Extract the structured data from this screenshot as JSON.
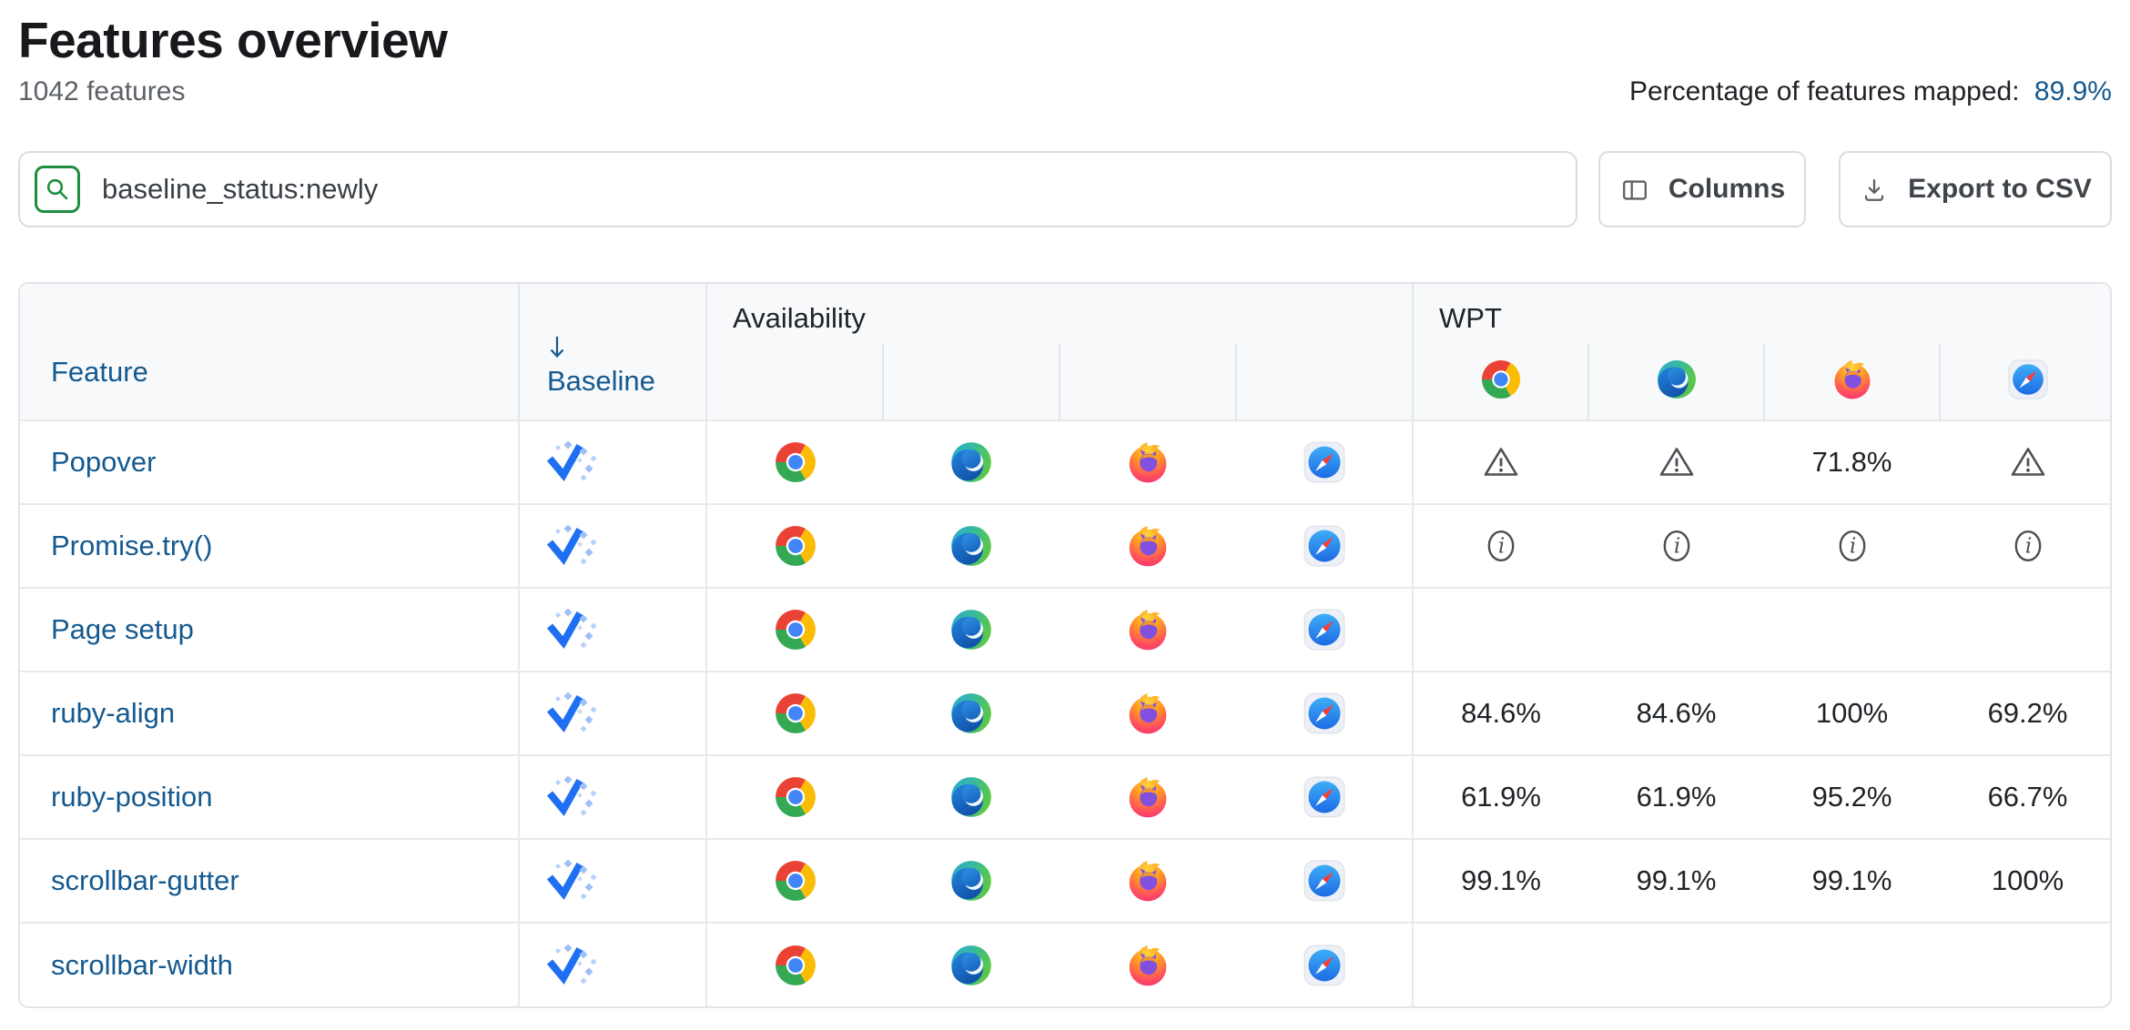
{
  "page": {
    "title": "Features overview",
    "feature_count": "1042 features",
    "mapped_label": "Percentage of features mapped:",
    "mapped_value": "89.9%"
  },
  "toolbar": {
    "search_icon": "magnifier",
    "search_value": "baseline_status:newly",
    "columns_label": "Columns",
    "columns_icon": "columns-layout",
    "export_label": "Export to CSV",
    "export_icon": "download"
  },
  "table": {
    "headers": {
      "feature": "Feature",
      "baseline": "Baseline",
      "baseline_sort_icon": "arrow-down",
      "availability": "Availability",
      "wpt": "WPT"
    },
    "wpt_browser_icons": [
      "chrome",
      "edge",
      "firefox",
      "safari"
    ],
    "rows": [
      {
        "feature": "Popover",
        "baseline": "newly",
        "availability": [
          "chrome",
          "edge",
          "firefox",
          "safari"
        ],
        "wpt": [
          {
            "type": "warning"
          },
          {
            "type": "warning"
          },
          {
            "type": "value",
            "text": "71.8%"
          },
          {
            "type": "warning"
          }
        ]
      },
      {
        "feature": "Promise.try()",
        "baseline": "newly",
        "availability": [
          "chrome",
          "edge",
          "firefox",
          "safari"
        ],
        "wpt": [
          {
            "type": "info"
          },
          {
            "type": "info"
          },
          {
            "type": "info"
          },
          {
            "type": "info"
          }
        ]
      },
      {
        "feature": "Page setup",
        "baseline": "newly",
        "availability": [
          "chrome",
          "edge",
          "firefox",
          "safari"
        ],
        "wpt": [
          {
            "type": "none"
          },
          {
            "type": "none"
          },
          {
            "type": "none"
          },
          {
            "type": "none"
          }
        ]
      },
      {
        "feature": "ruby-align",
        "baseline": "newly",
        "availability": [
          "chrome",
          "edge",
          "firefox",
          "safari"
        ],
        "wpt": [
          {
            "type": "value",
            "text": "84.6%"
          },
          {
            "type": "value",
            "text": "84.6%"
          },
          {
            "type": "value",
            "text": "100%"
          },
          {
            "type": "value",
            "text": "69.2%"
          }
        ]
      },
      {
        "feature": "ruby-position",
        "baseline": "newly",
        "availability": [
          "chrome",
          "edge",
          "firefox",
          "safari"
        ],
        "wpt": [
          {
            "type": "value",
            "text": "61.9%"
          },
          {
            "type": "value",
            "text": "61.9%"
          },
          {
            "type": "value",
            "text": "95.2%"
          },
          {
            "type": "value",
            "text": "66.7%"
          }
        ]
      },
      {
        "feature": "scrollbar-gutter",
        "baseline": "newly",
        "availability": [
          "chrome",
          "edge",
          "firefox",
          "safari"
        ],
        "wpt": [
          {
            "type": "value",
            "text": "99.1%"
          },
          {
            "type": "value",
            "text": "99.1%"
          },
          {
            "type": "value",
            "text": "99.1%"
          },
          {
            "type": "value",
            "text": "100%"
          }
        ]
      },
      {
        "feature": "scrollbar-width",
        "baseline": "newly",
        "availability": [
          "chrome",
          "edge",
          "firefox",
          "safari"
        ],
        "wpt": [
          {
            "type": "none"
          },
          {
            "type": "none"
          },
          {
            "type": "none"
          },
          {
            "type": "none"
          }
        ]
      }
    ]
  },
  "colors": {
    "link": "#14598f",
    "search_accent_green": "#1e8e3e",
    "baseline_check_blue": "#1f6ff2",
    "header_bg": "#f8f9fa",
    "border": "#e4e7ea"
  }
}
